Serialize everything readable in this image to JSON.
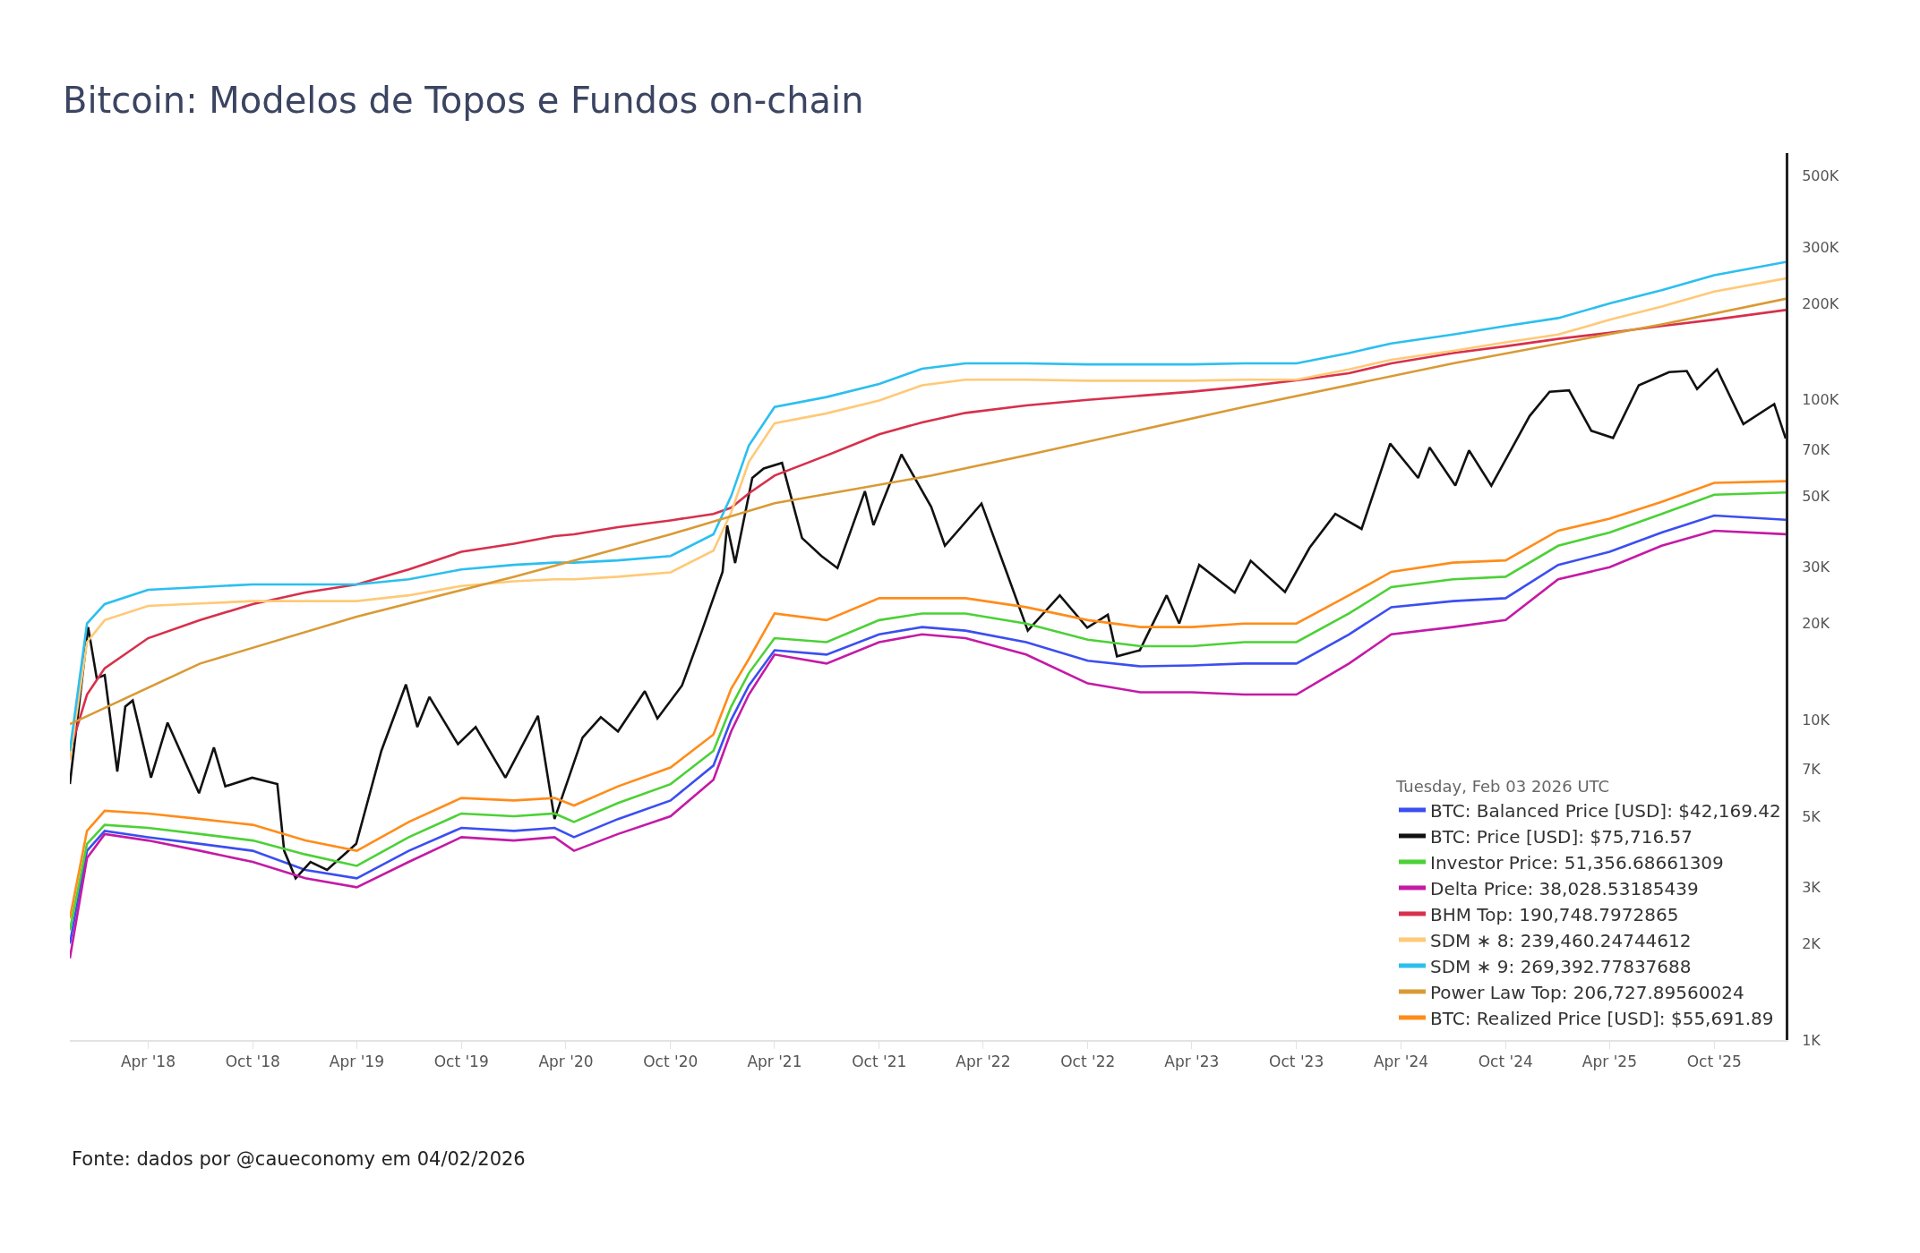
{
  "chart_data": {
    "type": "line",
    "title": "Bitcoin: Modelos de Topos e Fundos on-chain",
    "annotations": [
      "Fonte: dados por @caueconomy em 04/02/2026"
    ],
    "legend_title": "Tuesday, Feb 03 2026 UTC",
    "legend": "bottom right",
    "grid": false,
    "log": "y",
    "marker": "none",
    "line_style": "solid",
    "x": [
      "2017-11-15",
      "2017-12-15",
      "2018-01-15",
      "2018-04-01",
      "2018-07-01",
      "2018-10-01",
      "2019-01-01",
      "2019-04-01",
      "2019-07-01",
      "2019-10-01",
      "2020-01-01",
      "2020-03-12",
      "2020-04-15",
      "2020-07-01",
      "2020-10-01",
      "2020-12-15",
      "2021-01-15",
      "2021-02-15",
      "2021-04-01",
      "2021-07-01",
      "2021-10-01",
      "2021-12-15",
      "2022-03-01",
      "2022-06-15",
      "2022-10-01",
      "2023-01-01",
      "2023-04-01",
      "2023-07-01",
      "2023-10-01",
      "2024-01-01",
      "2024-03-15",
      "2024-07-01",
      "2024-10-01",
      "2025-01-01",
      "2025-04-01",
      "2025-07-01",
      "2025-10-01",
      "2026-02-03"
    ],
    "xlim": [
      "2017-11-15",
      "2026-02-03"
    ],
    "xticks": [
      {
        "value": "2018-04-01",
        "label": "Apr '18"
      },
      {
        "value": "2018-10-01",
        "label": "Oct '18"
      },
      {
        "value": "2019-04-01",
        "label": "Apr '19"
      },
      {
        "value": "2019-10-01",
        "label": "Oct '19"
      },
      {
        "value": "2020-04-01",
        "label": "Apr '20"
      },
      {
        "value": "2020-10-01",
        "label": "Oct '20"
      },
      {
        "value": "2021-04-01",
        "label": "Apr '21"
      },
      {
        "value": "2021-10-01",
        "label": "Oct '21"
      },
      {
        "value": "2022-04-01",
        "label": "Apr '22"
      },
      {
        "value": "2022-10-01",
        "label": "Oct '22"
      },
      {
        "value": "2023-04-01",
        "label": "Apr '23"
      },
      {
        "value": "2023-10-01",
        "label": "Oct '23"
      },
      {
        "value": "2024-04-01",
        "label": "Apr '24"
      },
      {
        "value": "2024-10-01",
        "label": "Oct '24"
      },
      {
        "value": "2025-04-01",
        "label": "Apr '25"
      },
      {
        "value": "2025-10-01",
        "label": "Oct '25"
      }
    ],
    "ylim": [
      1000,
      590000
    ],
    "yticks": [
      {
        "value": 1000,
        "label": "1K"
      },
      {
        "value": 2000,
        "label": "2K"
      },
      {
        "value": 3000,
        "label": "3K"
      },
      {
        "value": 5000,
        "label": "5K"
      },
      {
        "value": 7000,
        "label": "7K"
      },
      {
        "value": 10000,
        "label": "10K"
      },
      {
        "value": 20000,
        "label": "20K"
      },
      {
        "value": 30000,
        "label": "30K"
      },
      {
        "value": 50000,
        "label": "50K"
      },
      {
        "value": 70000,
        "label": "70K"
      },
      {
        "value": 100000,
        "label": "100K"
      },
      {
        "value": 200000,
        "label": "200K"
      },
      {
        "value": 300000,
        "label": "300K"
      },
      {
        "value": 500000,
        "label": "500K"
      }
    ],
    "series": [
      {
        "name": "BTC: Balanced Price [USD]: $42,169.42",
        "color": "#3b4ef0",
        "values": [
          2000,
          3900,
          4500,
          4300,
          4100,
          3900,
          3400,
          3200,
          3900,
          4600,
          4500,
          4600,
          4300,
          4900,
          5600,
          7200,
          10000,
          12800,
          16500,
          16000,
          18500,
          19500,
          19000,
          17500,
          15300,
          14700,
          14800,
          15000,
          15000,
          18500,
          22500,
          23500,
          24000,
          30500,
          33500,
          38500,
          43500,
          42169.42
        ]
      },
      {
        "name": "BTC: Price [USD]: $75,716.57",
        "color": "#111111",
        "x": [
          "2017-11-15",
          "2017-12-17",
          "2018-01-01",
          "2018-01-15",
          "2018-02-06",
          "2018-02-20",
          "2018-03-05",
          "2018-04-06",
          "2018-05-05",
          "2018-06-29",
          "2018-07-25",
          "2018-08-14",
          "2018-09-30",
          "2018-11-13",
          "2018-11-25",
          "2018-12-15",
          "2019-01-10",
          "2019-02-08",
          "2019-03-31",
          "2019-05-14",
          "2019-06-26",
          "2019-07-16",
          "2019-08-06",
          "2019-09-25",
          "2019-10-26",
          "2019-12-17",
          "2020-02-12",
          "2020-03-12",
          "2020-04-30",
          "2020-06-01",
          "2020-07-01",
          "2020-08-17",
          "2020-09-08",
          "2020-10-21",
          "2020-11-25",
          "2020-12-31",
          "2021-01-08",
          "2021-01-22",
          "2021-02-21",
          "2021-03-13",
          "2021-04-14",
          "2021-05-19",
          "2021-06-22",
          "2021-07-20",
          "2021-09-06",
          "2021-09-21",
          "2021-11-09",
          "2021-12-31",
          "2022-01-24",
          "2022-03-29",
          "2022-05-12",
          "2022-06-18",
          "2022-08-13",
          "2022-09-30",
          "2022-11-05",
          "2022-11-21",
          "2022-12-31",
          "2023-02-16",
          "2023-03-10",
          "2023-04-14",
          "2023-06-15",
          "2023-07-13",
          "2023-09-11",
          "2023-10-24",
          "2023-12-08",
          "2024-01-23",
          "2024-03-13",
          "2024-05-01",
          "2024-05-21",
          "2024-07-05",
          "2024-07-29",
          "2024-09-06",
          "2024-11-12",
          "2024-12-17",
          "2025-01-20",
          "2025-02-28",
          "2025-04-07",
          "2025-05-22",
          "2025-07-14",
          "2025-08-14",
          "2025-09-01",
          "2025-10-06",
          "2025-11-21",
          "2026-01-14",
          "2026-02-03"
        ],
        "values": [
          6300,
          19500,
          13500,
          13800,
          6900,
          11000,
          11500,
          6600,
          9800,
          5900,
          8200,
          6200,
          6600,
          6300,
          3900,
          3200,
          3600,
          3400,
          4100,
          8000,
          12900,
          9500,
          11800,
          8400,
          9500,
          6600,
          10300,
          4900,
          8800,
          10200,
          9200,
          12300,
          10100,
          12800,
          19000,
          29000,
          40500,
          30900,
          57000,
          61000,
          63500,
          37000,
          32500,
          29800,
          51800,
          40600,
          67500,
          46300,
          35000,
          47400,
          28900,
          19000,
          24500,
          19400,
          21300,
          15800,
          16500,
          24500,
          20000,
          30500,
          25000,
          31400,
          25100,
          34500,
          44000,
          39500,
          73000,
          57000,
          71000,
          54000,
          69500,
          53900,
          89000,
          106000,
          107000,
          80000,
          76000,
          111000,
          122000,
          123000,
          108000,
          124500,
          84000,
          97000,
          75716.57
        ]
      },
      {
        "name": "Investor Price: 51,356.68661309",
        "color": "#4cd137",
        "values": [
          2200,
          4100,
          4700,
          4600,
          4400,
          4200,
          3800,
          3500,
          4300,
          5100,
          5000,
          5100,
          4800,
          5500,
          6300,
          8000,
          11000,
          14000,
          18000,
          17500,
          20500,
          21500,
          21500,
          20000,
          17800,
          17000,
          17000,
          17500,
          17500,
          21500,
          26000,
          27500,
          28000,
          35000,
          38500,
          44000,
          50500,
          51356.69
        ]
      },
      {
        "name": "Delta Price: 38,028.53185439",
        "color": "#c41aa6",
        "values": [
          1800,
          3700,
          4400,
          4200,
          3900,
          3600,
          3200,
          3000,
          3600,
          4300,
          4200,
          4300,
          3900,
          4400,
          5000,
          6500,
          9200,
          12000,
          16000,
          15000,
          17500,
          18500,
          18000,
          16000,
          13000,
          12200,
          12200,
          12000,
          12000,
          15000,
          18500,
          19500,
          20500,
          27500,
          30000,
          35000,
          39000,
          38028.53
        ]
      },
      {
        "name": "BHM Top: 190,748.7972865",
        "color": "#d7304c",
        "values": [
          8000,
          12000,
          14500,
          18000,
          20500,
          23000,
          25000,
          26500,
          29500,
          33500,
          35500,
          37500,
          38000,
          40000,
          42000,
          44000,
          46000,
          51000,
          58000,
          67000,
          78000,
          85000,
          91000,
          96000,
          100000,
          103000,
          106000,
          110000,
          115000,
          121000,
          130000,
          140000,
          147000,
          155000,
          162000,
          170000,
          178000,
          190748.8
        ]
      },
      {
        "name": "SDM ∗ 8: 239,460.24744612",
        "color": "#ffc978",
        "values": [
          7500,
          17500,
          20500,
          22700,
          23100,
          23500,
          23500,
          23500,
          24500,
          26200,
          27100,
          27500,
          27500,
          28000,
          28900,
          33800,
          44500,
          64000,
          84500,
          90700,
          99500,
          111000,
          115500,
          115500,
          114700,
          114700,
          114700,
          115500,
          115500,
          124500,
          133300,
          142200,
          151100,
          160000,
          177800,
          195500,
          217800,
          239460.25
        ]
      },
      {
        "name": "SDM ∗ 9: 269,392.77837688",
        "color": "#2bbfef",
        "values": [
          8000,
          20000,
          23000,
          25500,
          26000,
          26500,
          26500,
          26500,
          27500,
          29500,
          30500,
          31000,
          31000,
          31500,
          32500,
          38000,
          50000,
          72000,
          95000,
          102000,
          112000,
          125000,
          130000,
          130000,
          129000,
          129000,
          129000,
          130000,
          130000,
          140000,
          150000,
          160000,
          170000,
          180000,
          200000,
          220000,
          245000,
          269392.78
        ]
      },
      {
        "name": "Power Law Top: 206,727.89560024",
        "color": "#d99a35",
        "x": [
          "2017-11-15",
          "2018-07-01",
          "2019-04-01",
          "2020-01-01",
          "2020-10-01",
          "2021-04-01",
          "2022-01-01",
          "2022-07-01",
          "2023-07-01",
          "2024-07-01",
          "2025-07-01",
          "2026-02-03"
        ],
        "values": [
          9700,
          15000,
          21000,
          28000,
          38000,
          47500,
          58000,
          68000,
          95000,
          130000,
          172000,
          206727.9
        ]
      },
      {
        "name": "BTC: Realized Price [USD]: $55,691.89",
        "color": "#ff8c1a",
        "values": [
          2400,
          4500,
          5200,
          5100,
          4900,
          4700,
          4200,
          3900,
          4800,
          5700,
          5600,
          5700,
          5400,
          6200,
          7100,
          9000,
          12500,
          15500,
          21500,
          20500,
          24000,
          24000,
          24000,
          22500,
          20500,
          19500,
          19500,
          20000,
          20000,
          24500,
          29000,
          31000,
          31500,
          39000,
          42500,
          48000,
          55000,
          55691.89
        ]
      }
    ]
  }
}
